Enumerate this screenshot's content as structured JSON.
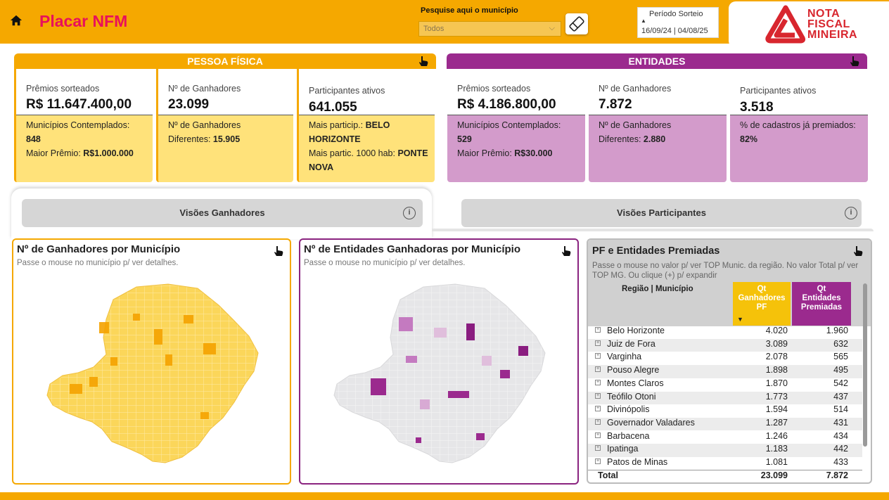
{
  "header": {
    "title": "Placar NFM",
    "search_label": "Pesquise aqui o município",
    "search_value": "Todos",
    "period_label": "Período Sorteio",
    "period_value": "16/09/24 | 04/08/25",
    "logo_lines": [
      "NOTA",
      "FISCAL",
      "MINEIRA"
    ],
    "icons": [
      "home-icon",
      "chevron-down-icon",
      "eraser-icon",
      "sort-up-icon",
      "nfm-logo-icon"
    ]
  },
  "pessoa_fisica": {
    "title": "PESSOA FÍSICA",
    "cards": [
      {
        "label": "Prêmios sorteados",
        "value": "R$ 11.647.400,00",
        "details": [
          {
            "text": "Municípios Contemplados:",
            "bold": ""
          },
          {
            "text": "",
            "bold": "848"
          },
          {
            "text": "Maior Prêmio: ",
            "bold": "R$1.000.000"
          }
        ]
      },
      {
        "label": "Nº de Ganhadores",
        "value": "23.099",
        "details": [
          {
            "text": "Nº de Ganhadores",
            "bold": ""
          },
          {
            "text": "Diferentes: ",
            "bold": "15.905"
          }
        ]
      },
      {
        "label": "Participantes ativos",
        "value": "641.055",
        "details": [
          {
            "text": "Mais particip.: ",
            "bold": "BELO"
          },
          {
            "text": "",
            "bold": "HORIZONTE"
          },
          {
            "text": "Mais partic. 1000 hab: ",
            "bold": "PONTE"
          },
          {
            "text": "",
            "bold": "NOVA"
          }
        ]
      }
    ]
  },
  "entidades": {
    "title": "ENTIDADES",
    "cards": [
      {
        "label": "Prêmios sorteados",
        "value": "R$ 4.186.800,00",
        "details": [
          {
            "text": "Municípios Contemplados:",
            "bold": ""
          },
          {
            "text": "",
            "bold": "529"
          },
          {
            "text": "Maior Prêmio: ",
            "bold": "R$30.000"
          }
        ]
      },
      {
        "label": "Nº de Ganhadores",
        "value": "7.872",
        "details": [
          {
            "text": "Nº de Ganhadores",
            "bold": ""
          },
          {
            "text": "Diferentes: ",
            "bold": "2.880"
          }
        ]
      },
      {
        "label": "Participantes ativos",
        "value": "3.518",
        "details": [
          {
            "text": "% de cadastros já premiados:",
            "bold": ""
          },
          {
            "text": "",
            "bold": "82%"
          }
        ]
      }
    ]
  },
  "tabs": {
    "ganhadores": "Visões Ganhadores",
    "participantes": "Visões Participantes",
    "info_glyph": "i"
  },
  "map_pf": {
    "title": "Nº de Ganhadores por Município",
    "subtitle": "Passe o mouse no município p/ ver detalhes."
  },
  "map_entidades": {
    "title": "Nº de Entidades Ganhadoras por Município",
    "subtitle": "Passe o mouse no município p/ ver detalhes."
  },
  "table": {
    "title": "PF e Entidades Premiadas",
    "subtitle": "Passe o mouse no valor p/ ver TOP Munic. da região. No valor Total p/ ver TOP MG. Ou clique (+) p/ expandir",
    "col_region": "Região | Município",
    "col_pf": [
      "Qt",
      "Ganhadores",
      "PF"
    ],
    "col_en": [
      "Qt",
      "Entidades",
      "Premiadas"
    ],
    "rows": [
      {
        "name": "Belo Horizonte",
        "pf": "4.020",
        "en": "1.960"
      },
      {
        "name": "Juiz de Fora",
        "pf": "3.089",
        "en": "632"
      },
      {
        "name": "Varginha",
        "pf": "2.078",
        "en": "565"
      },
      {
        "name": "Pouso Alegre",
        "pf": "1.898",
        "en": "495"
      },
      {
        "name": "Montes Claros",
        "pf": "1.870",
        "en": "542"
      },
      {
        "name": "Teófilo Otoni",
        "pf": "1.773",
        "en": "437"
      },
      {
        "name": "Divinópolis",
        "pf": "1.594",
        "en": "514"
      },
      {
        "name": "Governador Valadares",
        "pf": "1.287",
        "en": "431"
      },
      {
        "name": "Barbacena",
        "pf": "1.246",
        "en": "434"
      },
      {
        "name": "Ipatinga",
        "pf": "1.183",
        "en": "442"
      },
      {
        "name": "Patos de Minas",
        "pf": "1.081",
        "en": "433"
      }
    ],
    "total": {
      "name": "Total",
      "pf": "23.099",
      "en": "7.872"
    }
  },
  "colors": {
    "brand_orange": "#f5a800",
    "title_pink": "#e8115b",
    "pf_light": "#ffe27a",
    "entidades_purple": "#9b2a8e",
    "entidades_light": "#d39bcb"
  }
}
